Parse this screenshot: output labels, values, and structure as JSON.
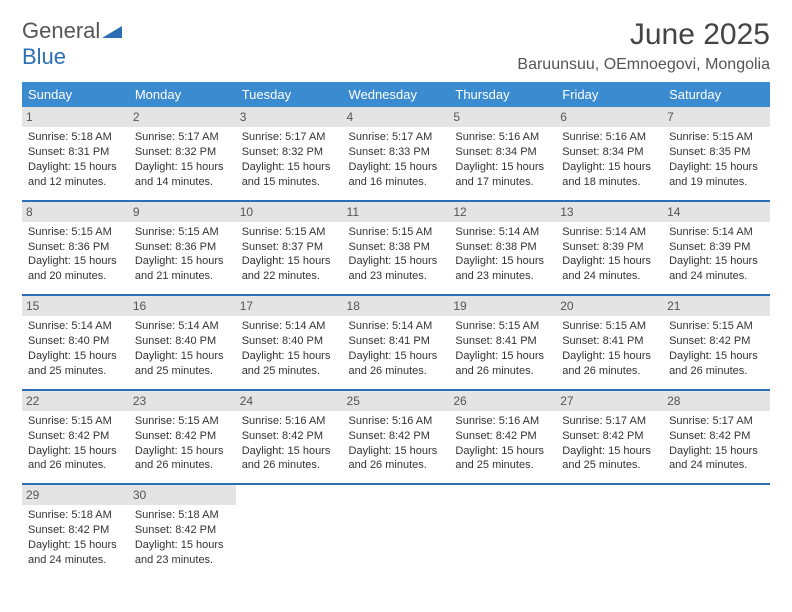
{
  "brand": {
    "line1": "General",
    "line2": "Blue"
  },
  "title": "June 2025",
  "location": "Baruunsuu, OEmnoegovi, Mongolia",
  "colors": {
    "header_bg": "#3b8bd0",
    "header_text": "#ffffff",
    "rule": "#2c6fb5",
    "daynum_bg": "#e4e4e4",
    "text": "#333333",
    "brand_blue": "#2c6fb5"
  },
  "weekdays": [
    "Sunday",
    "Monday",
    "Tuesday",
    "Wednesday",
    "Thursday",
    "Friday",
    "Saturday"
  ],
  "weeks": [
    [
      {
        "n": "1",
        "sr": "5:18 AM",
        "ss": "8:31 PM",
        "dl": "15 hours and 12 minutes."
      },
      {
        "n": "2",
        "sr": "5:17 AM",
        "ss": "8:32 PM",
        "dl": "15 hours and 14 minutes."
      },
      {
        "n": "3",
        "sr": "5:17 AM",
        "ss": "8:32 PM",
        "dl": "15 hours and 15 minutes."
      },
      {
        "n": "4",
        "sr": "5:17 AM",
        "ss": "8:33 PM",
        "dl": "15 hours and 16 minutes."
      },
      {
        "n": "5",
        "sr": "5:16 AM",
        "ss": "8:34 PM",
        "dl": "15 hours and 17 minutes."
      },
      {
        "n": "6",
        "sr": "5:16 AM",
        "ss": "8:34 PM",
        "dl": "15 hours and 18 minutes."
      },
      {
        "n": "7",
        "sr": "5:15 AM",
        "ss": "8:35 PM",
        "dl": "15 hours and 19 minutes."
      }
    ],
    [
      {
        "n": "8",
        "sr": "5:15 AM",
        "ss": "8:36 PM",
        "dl": "15 hours and 20 minutes."
      },
      {
        "n": "9",
        "sr": "5:15 AM",
        "ss": "8:36 PM",
        "dl": "15 hours and 21 minutes."
      },
      {
        "n": "10",
        "sr": "5:15 AM",
        "ss": "8:37 PM",
        "dl": "15 hours and 22 minutes."
      },
      {
        "n": "11",
        "sr": "5:15 AM",
        "ss": "8:38 PM",
        "dl": "15 hours and 23 minutes."
      },
      {
        "n": "12",
        "sr": "5:14 AM",
        "ss": "8:38 PM",
        "dl": "15 hours and 23 minutes."
      },
      {
        "n": "13",
        "sr": "5:14 AM",
        "ss": "8:39 PM",
        "dl": "15 hours and 24 minutes."
      },
      {
        "n": "14",
        "sr": "5:14 AM",
        "ss": "8:39 PM",
        "dl": "15 hours and 24 minutes."
      }
    ],
    [
      {
        "n": "15",
        "sr": "5:14 AM",
        "ss": "8:40 PM",
        "dl": "15 hours and 25 minutes."
      },
      {
        "n": "16",
        "sr": "5:14 AM",
        "ss": "8:40 PM",
        "dl": "15 hours and 25 minutes."
      },
      {
        "n": "17",
        "sr": "5:14 AM",
        "ss": "8:40 PM",
        "dl": "15 hours and 25 minutes."
      },
      {
        "n": "18",
        "sr": "5:14 AM",
        "ss": "8:41 PM",
        "dl": "15 hours and 26 minutes."
      },
      {
        "n": "19",
        "sr": "5:15 AM",
        "ss": "8:41 PM",
        "dl": "15 hours and 26 minutes."
      },
      {
        "n": "20",
        "sr": "5:15 AM",
        "ss": "8:41 PM",
        "dl": "15 hours and 26 minutes."
      },
      {
        "n": "21",
        "sr": "5:15 AM",
        "ss": "8:42 PM",
        "dl": "15 hours and 26 minutes."
      }
    ],
    [
      {
        "n": "22",
        "sr": "5:15 AM",
        "ss": "8:42 PM",
        "dl": "15 hours and 26 minutes."
      },
      {
        "n": "23",
        "sr": "5:15 AM",
        "ss": "8:42 PM",
        "dl": "15 hours and 26 minutes."
      },
      {
        "n": "24",
        "sr": "5:16 AM",
        "ss": "8:42 PM",
        "dl": "15 hours and 26 minutes."
      },
      {
        "n": "25",
        "sr": "5:16 AM",
        "ss": "8:42 PM",
        "dl": "15 hours and 26 minutes."
      },
      {
        "n": "26",
        "sr": "5:16 AM",
        "ss": "8:42 PM",
        "dl": "15 hours and 25 minutes."
      },
      {
        "n": "27",
        "sr": "5:17 AM",
        "ss": "8:42 PM",
        "dl": "15 hours and 25 minutes."
      },
      {
        "n": "28",
        "sr": "5:17 AM",
        "ss": "8:42 PM",
        "dl": "15 hours and 24 minutes."
      }
    ],
    [
      {
        "n": "29",
        "sr": "5:18 AM",
        "ss": "8:42 PM",
        "dl": "15 hours and 24 minutes."
      },
      {
        "n": "30",
        "sr": "5:18 AM",
        "ss": "8:42 PM",
        "dl": "15 hours and 23 minutes."
      },
      null,
      null,
      null,
      null,
      null
    ]
  ],
  "labels": {
    "sunrise": "Sunrise:",
    "sunset": "Sunset:",
    "daylight": "Daylight:"
  }
}
